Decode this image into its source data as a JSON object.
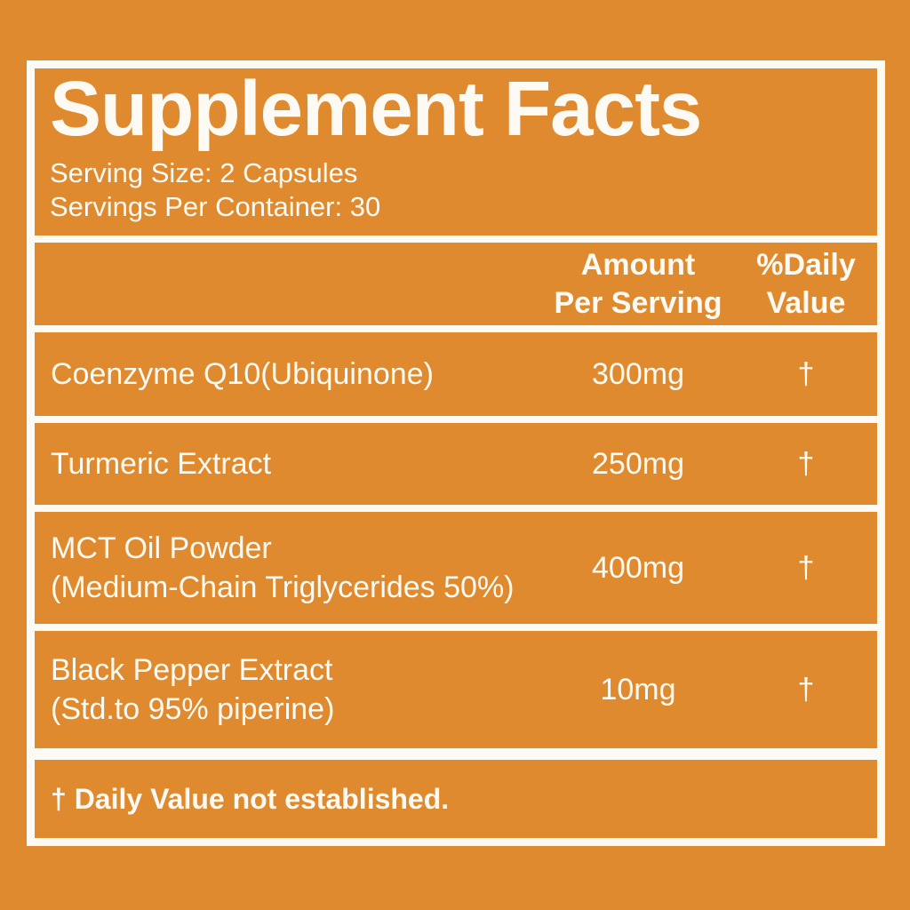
{
  "label": {
    "title": "Supplement Facts",
    "serving_size": "Serving Size: 2 Capsules",
    "servings_per_container": "Servings Per Container: 30",
    "columns": {
      "amount_line1": "Amount",
      "amount_line2": "Per Serving",
      "dv_line1": "%Daily",
      "dv_line2": "Value"
    },
    "rows": [
      {
        "name_line1": "Coenzyme Q10(Ubiquinone)",
        "name_line2": "",
        "amount": "300mg",
        "daily_value": "†"
      },
      {
        "name_line1": "Turmeric Extract",
        "name_line2": "",
        "amount": "250mg",
        "daily_value": "†"
      },
      {
        "name_line1": "MCT Oil Powder",
        "name_line2": "(Medium-Chain Triglycerides 50%)",
        "amount": "400mg",
        "daily_value": "†"
      },
      {
        "name_line1": "Black Pepper Extract",
        "name_line2": "(Std.to 95% piperine)",
        "amount": "10mg",
        "daily_value": "†"
      }
    ],
    "footnote": "† Daily Value not established.",
    "colors": {
      "background": "#DF8A2E",
      "text": "#FDFAF3",
      "border": "#FDFAF3"
    }
  }
}
